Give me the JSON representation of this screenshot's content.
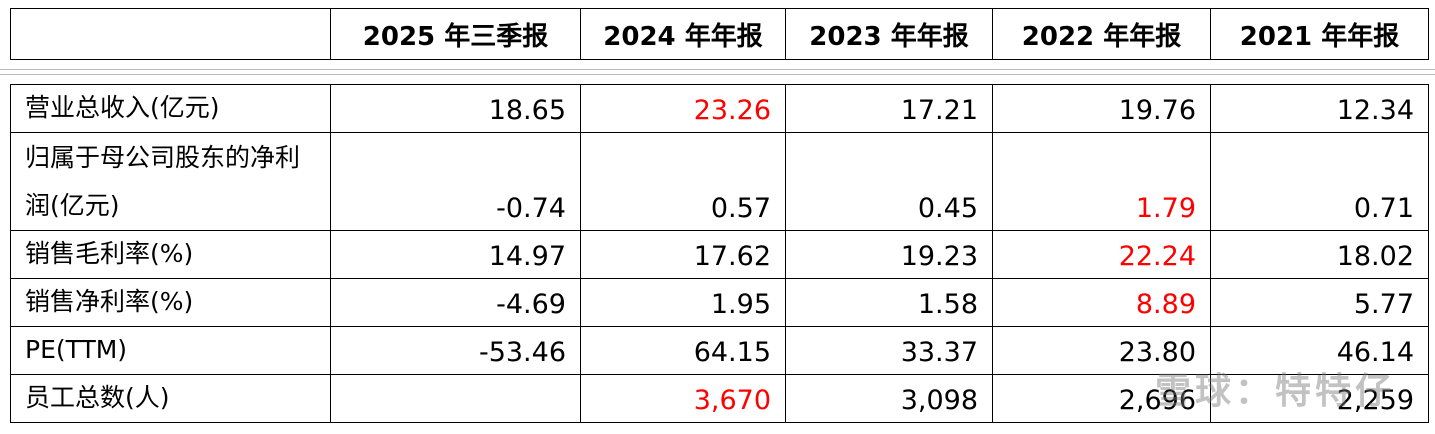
{
  "table": {
    "columns": [
      "2025 年三季报",
      "2024 年年报",
      "2023 年年报",
      "2022 年年报",
      "2021 年年报"
    ],
    "highlight_color": "#ff0000",
    "rows": [
      {
        "label": "营业总收入(亿元)",
        "values": [
          "18.65",
          "23.26",
          "17.21",
          "19.76",
          "12.34"
        ],
        "highlight": 1
      },
      {
        "label": "归属于母公司股东的净利润(亿元)",
        "values": [
          "-0.74",
          "0.57",
          "0.45",
          "1.79",
          "0.71"
        ],
        "highlight": 3
      },
      {
        "label": "销售毛利率(%)",
        "values": [
          "14.97",
          "17.62",
          "19.23",
          "22.24",
          "18.02"
        ],
        "highlight": 3
      },
      {
        "label": "销售净利率(%)",
        "values": [
          "-4.69",
          "1.95",
          "1.58",
          "8.89",
          "5.77"
        ],
        "highlight": 3
      },
      {
        "label": "PE(TTM)",
        "values": [
          "-53.46",
          "64.15",
          "33.37",
          "23.80",
          "46.14"
        ]
      },
      {
        "label": "员工总数(人)",
        "values": [
          null,
          "3,670",
          "3,098",
          "2,696",
          "2,259"
        ],
        "highlight": 1
      }
    ]
  },
  "watermark": "雪球：特特仔"
}
